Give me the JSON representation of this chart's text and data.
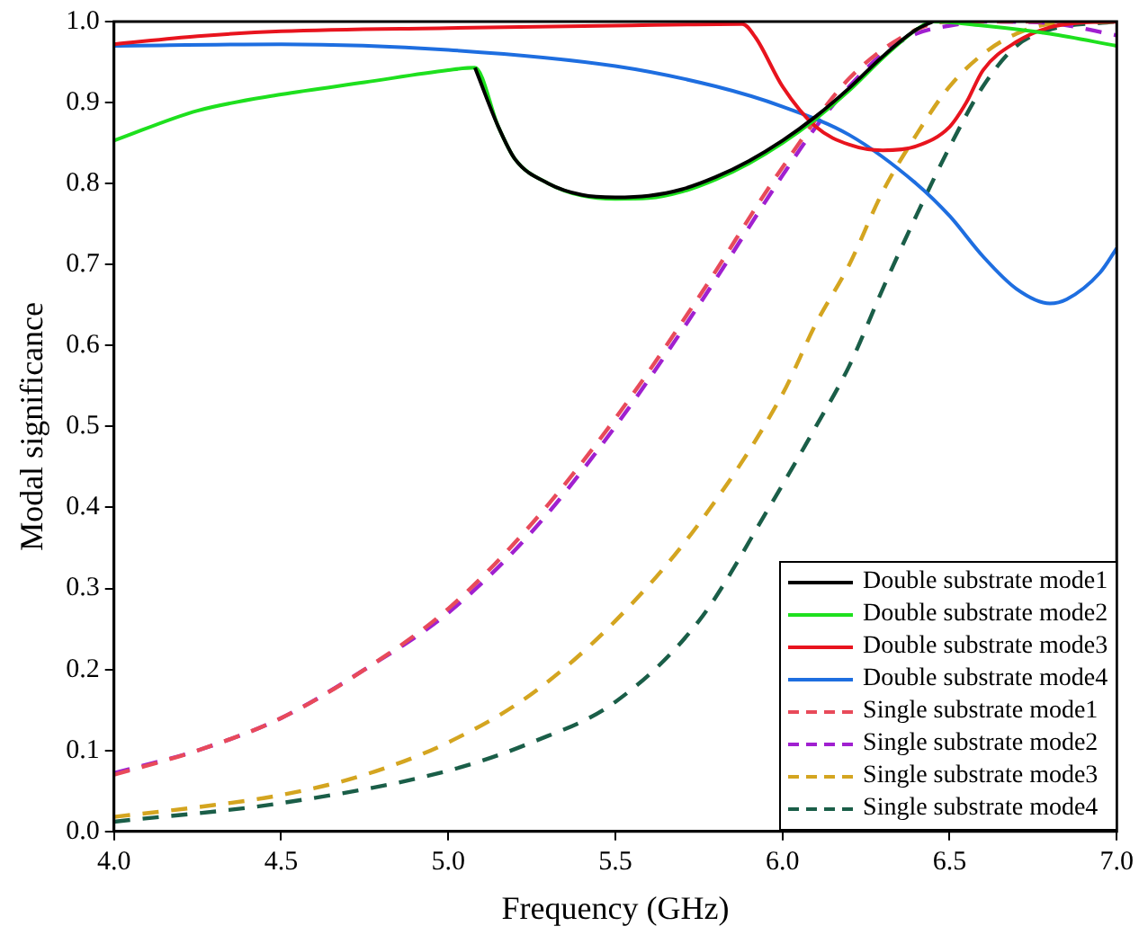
{
  "chart_data": {
    "type": "line",
    "xlabel": "Frequency (GHz)",
    "ylabel": "Modal significance",
    "xlim": [
      4.0,
      7.0
    ],
    "xticks": [
      {
        "value": 4,
        "label": "4.0"
      },
      {
        "value": 4.5,
        "label": "4.5"
      },
      {
        "value": 5,
        "label": "5.0"
      },
      {
        "value": 5.5,
        "label": "5.5"
      },
      {
        "value": 6,
        "label": "6.0"
      },
      {
        "value": 6.5,
        "label": "6.5"
      },
      {
        "value": 7,
        "label": "7.0"
      }
    ],
    "ylim": [
      0,
      1
    ],
    "yticks": [
      {
        "value": 0,
        "label": "0.0"
      },
      0.1,
      0.2,
      0.3,
      0.4,
      0.5,
      0.6,
      0.7,
      0.8,
      0.9,
      {
        "value": 1,
        "label": "1.0"
      }
    ],
    "grid": false,
    "legend": "bottom right",
    "marker": "none",
    "series": [
      {
        "name": "Double substrate mode1",
        "color": "#000000",
        "line_style": "solid",
        "x": [
          5.08,
          5.15,
          5.2,
          5.3,
          5.4,
          5.5,
          5.6,
          5.7,
          5.8,
          5.9,
          6.0,
          6.1,
          6.2,
          6.3,
          6.4,
          6.45
        ],
        "values": [
          0.943,
          0.87,
          0.83,
          0.8,
          0.786,
          0.783,
          0.785,
          0.793,
          0.808,
          0.828,
          0.853,
          0.883,
          0.918,
          0.957,
          0.99,
          1.0
        ]
      },
      {
        "name": "Double substrate mode2",
        "color": "#1ee01e",
        "line_style": "solid",
        "x": [
          4.0,
          4.25,
          4.5,
          4.75,
          5.0,
          5.08,
          5.15,
          5.2,
          5.3,
          5.4,
          5.5,
          5.6,
          5.7,
          5.8,
          5.9,
          6.0,
          6.1,
          6.2,
          6.3,
          6.4,
          6.45,
          6.6,
          6.8,
          7.0
        ],
        "values": [
          0.853,
          0.89,
          0.91,
          0.925,
          0.94,
          0.943,
          0.87,
          0.83,
          0.8,
          0.785,
          0.781,
          0.782,
          0.79,
          0.805,
          0.825,
          0.85,
          0.88,
          0.915,
          0.955,
          0.99,
          1.0,
          0.995,
          0.985,
          0.97
        ]
      },
      {
        "name": "Double substrate mode3",
        "color": "#e8141e",
        "line_style": "solid",
        "x": [
          4.0,
          4.25,
          4.5,
          5.0,
          5.5,
          5.88,
          5.92,
          6.0,
          6.1,
          6.2,
          6.3,
          6.4,
          6.5,
          6.55,
          6.6,
          6.7,
          6.8,
          6.9,
          7.0
        ],
        "values": [
          0.972,
          0.982,
          0.988,
          0.992,
          0.995,
          0.997,
          0.98,
          0.92,
          0.87,
          0.848,
          0.841,
          0.846,
          0.87,
          0.9,
          0.94,
          0.975,
          0.993,
          0.999,
          1.0
        ]
      },
      {
        "name": "Double substrate mode4",
        "color": "#1e6ee0",
        "line_style": "solid",
        "x": [
          4.0,
          4.5,
          5.0,
          5.5,
          5.8,
          6.0,
          6.2,
          6.4,
          6.5,
          6.6,
          6.7,
          6.8,
          6.85,
          6.95,
          7.0
        ],
        "values": [
          0.97,
          0.972,
          0.965,
          0.945,
          0.92,
          0.895,
          0.86,
          0.8,
          0.76,
          0.71,
          0.67,
          0.652,
          0.657,
          0.69,
          0.72
        ]
      },
      {
        "name": "Single substrate mode1",
        "color": "#e84a5a",
        "line_style": "dashed",
        "x": [
          4.0,
          4.25,
          4.5,
          4.75,
          5.0,
          5.25,
          5.5,
          5.75,
          6.0,
          6.2,
          6.4,
          6.5,
          7.0
        ],
        "values": [
          0.07,
          0.1,
          0.14,
          0.2,
          0.275,
          0.38,
          0.51,
          0.66,
          0.82,
          0.93,
          0.99,
          1.0,
          1.0
        ]
      },
      {
        "name": "Single substrate mode2",
        "color": "#a020d0",
        "line_style": "dashed",
        "x": [
          4.0,
          4.25,
          4.5,
          4.75,
          5.0,
          5.25,
          5.5,
          5.75,
          6.0,
          6.1,
          6.2,
          6.3,
          6.4,
          6.5,
          6.6,
          6.8,
          7.0
        ],
        "values": [
          0.072,
          0.1,
          0.14,
          0.2,
          0.27,
          0.37,
          0.5,
          0.65,
          0.81,
          0.87,
          0.92,
          0.96,
          0.985,
          0.995,
          1.0,
          0.998,
          0.983
        ]
      },
      {
        "name": "Single substrate mode3",
        "color": "#d4a520",
        "line_style": "dashed",
        "x": [
          4.0,
          4.25,
          4.5,
          4.75,
          5.0,
          5.25,
          5.5,
          5.75,
          6.0,
          6.1,
          6.2,
          6.3,
          6.4,
          6.5,
          6.6,
          6.7,
          6.8,
          7.0
        ],
        "values": [
          0.018,
          0.03,
          0.045,
          0.07,
          0.11,
          0.17,
          0.26,
          0.38,
          0.54,
          0.627,
          0.7,
          0.79,
          0.86,
          0.92,
          0.96,
          0.985,
          0.997,
          1.0
        ]
      },
      {
        "name": "Single substrate mode4",
        "color": "#1a5e48",
        "line_style": "dashed",
        "x": [
          4.0,
          4.5,
          5.0,
          5.25,
          5.5,
          5.75,
          5.96,
          6.1,
          6.2,
          6.3,
          6.4,
          6.5,
          6.6,
          6.7,
          6.8,
          7.0
        ],
        "values": [
          0.012,
          0.035,
          0.075,
          0.11,
          0.16,
          0.26,
          0.4,
          0.5,
          0.575,
          0.67,
          0.76,
          0.845,
          0.92,
          0.97,
          0.99,
          1.0
        ]
      }
    ]
  }
}
